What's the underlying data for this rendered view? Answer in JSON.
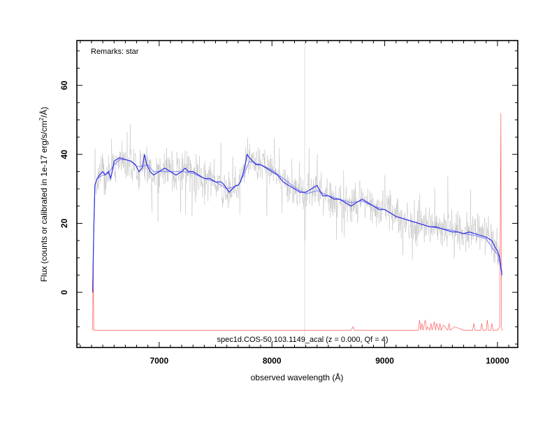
{
  "chart_data": {
    "type": "line",
    "annotation_top_left": "Remarks: star",
    "annotation_bottom": "spec1d.COS-50.103.1149_acal (z = 0.000, Qf = 4)",
    "xlabel": "observed wavelength (Å)",
    "ylabel_main": "Flux (counts or calibrated in 1e-17 erg/s/cm",
    "ylabel_sup": "2",
    "ylabel_end": "/Å)",
    "xlim": [
      6270,
      10180
    ],
    "ylim": [
      -16,
      73
    ],
    "x_ticks": [
      7000,
      8000,
      9000,
      10000
    ],
    "y_ticks": [
      0,
      20,
      40,
      60
    ],
    "x_tick_labels": [
      "7000",
      "8000",
      "9000",
      "10000"
    ],
    "y_tick_labels": [
      "0",
      "20",
      "40",
      "60"
    ],
    "vertical_line_x": 8290,
    "colors": {
      "raw": "#b4b4b4",
      "smoothed": "#3030e0",
      "template": "#8080ff",
      "noise": "#ff7070",
      "vline": "#d0d0d0"
    },
    "series": [
      {
        "key": "smoothed",
        "x": [
          6410,
          6420,
          6430,
          6450,
          6470,
          6500,
          6520,
          6550,
          6570,
          6590,
          6600,
          6620,
          6650,
          6700,
          6750,
          6790,
          6820,
          6850,
          6870,
          6890,
          6920,
          6950,
          7000,
          7050,
          7100,
          7150,
          7200,
          7230,
          7260,
          7300,
          7350,
          7400,
          7450,
          7500,
          7550,
          7580,
          7600,
          7620,
          7650,
          7680,
          7700,
          7720,
          7750,
          7780,
          7800,
          7830,
          7860,
          7900,
          7950,
          8000,
          8050,
          8100,
          8150,
          8200,
          8250,
          8300,
          8350,
          8400,
          8450,
          8500,
          8550,
          8600,
          8650,
          8700,
          8750,
          8800,
          8850,
          8900,
          8950,
          9000,
          9050,
          9100,
          9150,
          9200,
          9250,
          9300,
          9350,
          9400,
          9450,
          9500,
          9550,
          9600,
          9650,
          9700,
          9750,
          9800,
          9850,
          9900,
          9950,
          9980,
          10000,
          10020,
          10040
        ],
        "y": [
          0,
          18,
          31,
          33,
          34,
          35,
          34,
          35,
          33,
          36,
          38,
          38.5,
          39,
          38.5,
          38,
          37,
          35,
          36,
          40,
          37,
          35,
          34,
          35,
          36,
          35,
          34,
          35,
          36,
          35,
          35,
          34,
          33,
          33,
          32,
          32,
          31,
          30,
          29,
          30,
          31,
          31,
          32,
          35,
          40,
          39,
          38,
          37,
          37,
          36,
          35,
          34,
          32,
          31,
          30,
          29,
          29,
          30,
          31,
          28,
          28,
          27,
          27,
          26,
          25,
          26,
          27,
          26,
          25,
          24,
          24,
          23,
          22,
          21.5,
          21,
          20.5,
          20,
          19.5,
          19,
          19,
          18.5,
          18,
          17.5,
          17.5,
          17,
          17.5,
          17,
          16.5,
          16,
          15,
          13,
          12,
          10,
          5
        ]
      },
      {
        "key": "template",
        "x": [
          6410,
          6420,
          6430,
          6450,
          6500,
          6550,
          6600,
          6650,
          6700,
          6750,
          6800,
          6850,
          6900,
          6950,
          7000,
          7100,
          7200,
          7300,
          7400,
          7500,
          7600,
          7650,
          7700,
          7750,
          7800,
          7850,
          7900,
          8000,
          8100,
          8200,
          8300,
          8400,
          8500,
          8600,
          8700,
          8800,
          8900,
          9000,
          9100,
          9200,
          9300,
          9400,
          9500,
          9600,
          9700,
          9800,
          9900,
          9950,
          10000,
          10040
        ],
        "y": [
          0,
          18,
          31,
          33,
          34,
          34.5,
          37,
          38.5,
          38.5,
          38,
          36.5,
          36.5,
          37,
          35,
          35,
          35,
          35,
          34.5,
          33,
          32,
          30,
          30.5,
          31,
          34,
          38,
          37.5,
          37,
          35.5,
          33,
          30.5,
          28.5,
          29.5,
          28,
          27,
          26,
          26.5,
          25,
          24,
          22,
          21,
          20,
          19,
          18.5,
          18,
          17,
          16.5,
          15.5,
          13,
          11,
          6
        ]
      },
      {
        "key": "noise",
        "x": [
          6410,
          6415,
          6420,
          6500,
          6800,
          7200,
          7600,
          8000,
          8300,
          8600,
          8700,
          8720,
          8730,
          8800,
          9000,
          9200,
          9300,
          9310,
          9320,
          9330,
          9340,
          9360,
          9370,
          9380,
          9400,
          9410,
          9420,
          9440,
          9450,
          9460,
          9480,
          9490,
          9500,
          9520,
          9560,
          9570,
          9580,
          9620,
          9700,
          9780,
          9790,
          9800,
          9850,
          9860,
          9870,
          9900,
          9910,
          9920,
          9940,
          9950,
          9960,
          10000,
          10020,
          10030,
          10035,
          10040,
          10045
        ],
        "y": [
          -11,
          12,
          -11,
          -11,
          -11,
          -11,
          -11,
          -11,
          -11,
          -11,
          -11,
          -10,
          -11,
          -11,
          -11,
          -11,
          -11,
          -8,
          -11,
          -9,
          -11,
          -8,
          -11,
          -10,
          -11,
          -9,
          -11,
          -8.5,
          -11,
          -9,
          -11,
          -9,
          -11,
          -9.5,
          -11,
          -9,
          -11,
          -10,
          -11,
          -11,
          -9,
          -11,
          -11,
          -9,
          -11,
          -11,
          -8,
          -11,
          -11,
          -9,
          -11,
          -11,
          -10,
          52,
          -10,
          -11,
          -11
        ]
      }
    ]
  }
}
